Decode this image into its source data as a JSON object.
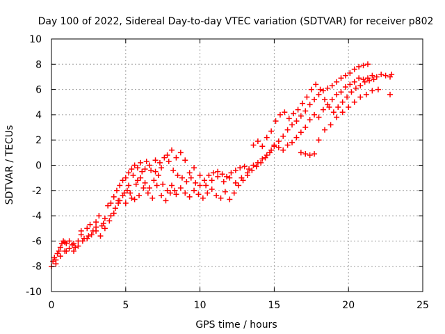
{
  "chart_data": {
    "type": "scatter",
    "title": "Day 100 of 2022, Sidereal Day-to-day VTEC variation (SDTVAR) for receiver p802",
    "xlabel": "GPS time / hours",
    "ylabel": "SDTVAR / TECUs",
    "xlim": [
      0,
      25
    ],
    "ylim": [
      -10,
      10
    ],
    "xticks": [
      0,
      5,
      10,
      15,
      20,
      25
    ],
    "yticks": [
      -10,
      -8,
      -6,
      -4,
      -2,
      0,
      2,
      4,
      6,
      8,
      10
    ],
    "grid": true,
    "marker": "plus",
    "color": "#ff0000",
    "series": [
      {
        "values": [
          [
            0.0,
            -8.0
          ],
          [
            0.1,
            -7.6
          ],
          [
            0.2,
            -7.3
          ],
          [
            0.3,
            -7.5
          ],
          [
            0.4,
            -7.0
          ],
          [
            0.5,
            -6.8
          ],
          [
            0.6,
            -6.5
          ],
          [
            0.7,
            -6.2
          ],
          [
            0.8,
            -6.0
          ],
          [
            0.9,
            -6.1
          ],
          [
            1.0,
            -6.2
          ],
          [
            1.2,
            -6.0
          ],
          [
            1.4,
            -6.3
          ],
          [
            1.6,
            -6.5
          ],
          [
            1.8,
            -6.0
          ],
          [
            2.0,
            -5.5
          ],
          [
            2.2,
            -5.8
          ],
          [
            2.4,
            -5.0
          ],
          [
            2.6,
            -4.7
          ],
          [
            2.8,
            -5.2
          ],
          [
            3.0,
            -4.5
          ],
          [
            3.2,
            -4.0
          ],
          [
            3.4,
            -4.8
          ],
          [
            3.6,
            -4.2
          ],
          [
            3.8,
            -3.2
          ],
          [
            4.0,
            -3.0
          ],
          [
            4.2,
            -2.5
          ],
          [
            4.4,
            -2.0
          ],
          [
            4.6,
            -1.6
          ],
          [
            4.8,
            -1.2
          ],
          [
            5.0,
            -1.0
          ],
          [
            5.2,
            -0.6
          ],
          [
            5.4,
            -0.3
          ],
          [
            5.6,
            0.0
          ],
          [
            5.8,
            -0.2
          ],
          [
            6.0,
            0.2
          ],
          [
            6.3,
            -0.3
          ],
          [
            6.6,
            0.0
          ],
          [
            7.0,
            -0.5
          ],
          [
            7.3,
            0.2
          ],
          [
            7.6,
            0.6
          ],
          [
            7.9,
            0.3
          ],
          [
            8.2,
            -0.4
          ],
          [
            8.5,
            -0.8
          ],
          [
            8.8,
            -1.0
          ],
          [
            9.1,
            -1.3
          ],
          [
            9.4,
            -1.0
          ],
          [
            9.7,
            -1.4
          ],
          [
            10.0,
            -1.6
          ],
          [
            10.3,
            -1.2
          ],
          [
            10.6,
            -0.8
          ],
          [
            10.9,
            -0.6
          ],
          [
            11.2,
            -0.5
          ],
          [
            11.5,
            -0.7
          ],
          [
            11.8,
            -0.9
          ],
          [
            12.1,
            -0.6
          ],
          [
            12.4,
            -0.4
          ],
          [
            12.7,
            -0.2
          ],
          [
            13.0,
            -0.1
          ],
          [
            13.3,
            -0.3
          ],
          [
            13.6,
            0.0
          ],
          [
            13.9,
            0.2
          ],
          [
            14.2,
            0.5
          ],
          [
            14.5,
            0.8
          ],
          [
            14.8,
            1.2
          ],
          [
            15.0,
            1.5
          ],
          [
            15.3,
            1.9
          ],
          [
            15.6,
            2.3
          ],
          [
            15.9,
            2.8
          ],
          [
            16.2,
            3.2
          ],
          [
            16.5,
            3.5
          ],
          [
            16.8,
            3.9
          ],
          [
            17.1,
            4.3
          ],
          [
            17.4,
            4.8
          ],
          [
            17.7,
            5.2
          ],
          [
            18.0,
            5.6
          ],
          [
            18.3,
            5.9
          ],
          [
            18.6,
            6.1
          ],
          [
            18.9,
            6.3
          ],
          [
            19.2,
            6.6
          ],
          [
            19.5,
            6.9
          ],
          [
            19.8,
            7.1
          ],
          [
            20.1,
            7.3
          ],
          [
            20.4,
            7.6
          ],
          [
            20.7,
            7.8
          ],
          [
            21.0,
            7.9
          ],
          [
            21.3,
            8.0
          ]
        ]
      },
      {
        "values": [
          [
            0.3,
            -7.8
          ],
          [
            0.6,
            -7.2
          ],
          [
            0.9,
            -6.8
          ],
          [
            1.2,
            -6.6
          ],
          [
            1.5,
            -6.8
          ],
          [
            1.8,
            -6.4
          ],
          [
            2.1,
            -6.0
          ],
          [
            2.4,
            -5.8
          ],
          [
            2.7,
            -5.5
          ],
          [
            3.0,
            -5.2
          ],
          [
            3.3,
            -5.6
          ],
          [
            3.6,
            -5.0
          ],
          [
            3.9,
            -4.4
          ],
          [
            4.2,
            -3.8
          ],
          [
            4.5,
            -3.0
          ],
          [
            4.8,
            -2.4
          ],
          [
            5.1,
            -2.0
          ],
          [
            5.4,
            -2.6
          ],
          [
            5.7,
            -1.5
          ],
          [
            6.0,
            -1.0
          ],
          [
            6.3,
            -1.4
          ],
          [
            6.6,
            -1.8
          ],
          [
            6.9,
            -1.2
          ],
          [
            7.2,
            -0.8
          ],
          [
            7.5,
            -1.5
          ],
          [
            7.8,
            -2.0
          ],
          [
            8.1,
            -1.6
          ],
          [
            8.4,
            -2.3
          ],
          [
            8.7,
            -1.8
          ],
          [
            9.0,
            -2.2
          ],
          [
            9.3,
            -2.5
          ],
          [
            9.6,
            -2.0
          ],
          [
            9.9,
            -2.3
          ],
          [
            10.2,
            -2.6
          ],
          [
            10.5,
            -2.2
          ],
          [
            10.8,
            -1.9
          ],
          [
            11.1,
            -2.4
          ],
          [
            11.4,
            -2.6
          ],
          [
            11.7,
            -2.1
          ],
          [
            12.0,
            -2.7
          ],
          [
            12.3,
            -2.2
          ],
          [
            12.6,
            -1.6
          ],
          [
            12.9,
            -1.2
          ],
          [
            13.2,
            -0.8
          ],
          [
            13.5,
            -0.4
          ],
          [
            13.8,
            -0.1
          ],
          [
            14.1,
            0.2
          ],
          [
            14.4,
            0.6
          ],
          [
            14.7,
            1.0
          ],
          [
            15.0,
            1.6
          ],
          [
            15.3,
            1.4
          ],
          [
            15.6,
            1.2
          ],
          [
            15.9,
            1.6
          ],
          [
            16.2,
            1.8
          ],
          [
            16.5,
            2.2
          ],
          [
            16.8,
            2.6
          ],
          [
            17.1,
            3.0
          ],
          [
            17.4,
            3.6
          ],
          [
            17.7,
            4.0
          ],
          [
            18.0,
            3.8
          ],
          [
            18.3,
            4.4
          ],
          [
            18.6,
            4.8
          ],
          [
            18.9,
            5.2
          ],
          [
            19.2,
            5.6
          ],
          [
            19.5,
            5.8
          ],
          [
            19.8,
            6.2
          ],
          [
            20.1,
            6.4
          ],
          [
            20.4,
            6.6
          ],
          [
            20.7,
            6.9
          ],
          [
            21.0,
            6.8
          ],
          [
            21.3,
            6.9
          ],
          [
            21.6,
            7.1
          ],
          [
            21.9,
            7.0
          ],
          [
            22.2,
            7.2
          ],
          [
            22.5,
            7.1
          ],
          [
            22.8,
            7.0
          ],
          [
            22.9,
            7.2
          ]
        ]
      },
      {
        "values": [
          [
            1.0,
            -6.8
          ],
          [
            1.5,
            -6.2
          ],
          [
            2.0,
            -5.2
          ],
          [
            2.5,
            -5.6
          ],
          [
            3.0,
            -4.9
          ],
          [
            3.5,
            -4.6
          ],
          [
            4.0,
            -4.0
          ],
          [
            4.3,
            -3.4
          ],
          [
            4.6,
            -2.8
          ],
          [
            4.9,
            -2.2
          ],
          [
            5.2,
            -1.6
          ],
          [
            5.5,
            -0.8
          ],
          [
            5.8,
            -1.2
          ],
          [
            6.1,
            -0.5
          ],
          [
            6.4,
            0.3
          ],
          [
            6.7,
            -0.4
          ],
          [
            7.0,
            0.4
          ],
          [
            7.4,
            -0.2
          ],
          [
            7.8,
            0.8
          ],
          [
            8.1,
            1.2
          ],
          [
            8.4,
            0.6
          ],
          [
            8.7,
            1.0
          ],
          [
            9.0,
            0.4
          ],
          [
            9.3,
            -0.6
          ],
          [
            9.6,
            -0.2
          ],
          [
            10.0,
            -0.8
          ],
          [
            10.4,
            -1.6
          ],
          [
            10.8,
            -1.2
          ],
          [
            11.2,
            -0.9
          ],
          [
            11.6,
            -1.3
          ],
          [
            12.0,
            -1.0
          ],
          [
            12.4,
            -1.4
          ],
          [
            12.8,
            -1.0
          ],
          [
            13.2,
            -0.6
          ],
          [
            13.6,
            1.6
          ],
          [
            13.9,
            1.9
          ],
          [
            14.2,
            1.5
          ],
          [
            14.5,
            2.2
          ],
          [
            14.8,
            2.7
          ],
          [
            15.1,
            3.5
          ],
          [
            15.4,
            4.0
          ],
          [
            15.7,
            4.2
          ],
          [
            16.0,
            3.7
          ],
          [
            16.3,
            4.1
          ],
          [
            16.6,
            4.4
          ],
          [
            16.9,
            4.9
          ],
          [
            17.2,
            5.4
          ],
          [
            17.5,
            6.0
          ],
          [
            17.8,
            6.4
          ],
          [
            18.1,
            6.0
          ],
          [
            18.4,
            5.2
          ],
          [
            18.7,
            4.6
          ],
          [
            19.0,
            4.2
          ],
          [
            19.3,
            4.6
          ],
          [
            19.6,
            5.0
          ],
          [
            19.9,
            5.4
          ],
          [
            20.2,
            5.8
          ],
          [
            20.5,
            6.1
          ],
          [
            20.8,
            6.3
          ],
          [
            21.1,
            6.6
          ],
          [
            21.4,
            6.7
          ],
          [
            21.7,
            6.8
          ]
        ]
      },
      {
        "values": [
          [
            4.5,
            -2.8
          ],
          [
            5.0,
            -3.0
          ],
          [
            5.3,
            -2.2
          ],
          [
            5.6,
            -2.7
          ],
          [
            5.9,
            -2.4
          ],
          [
            6.2,
            -1.8
          ],
          [
            6.5,
            -2.2
          ],
          [
            6.8,
            -2.6
          ],
          [
            7.1,
            -1.6
          ],
          [
            7.4,
            -2.4
          ],
          [
            7.7,
            -2.8
          ],
          [
            8.0,
            -2.2
          ],
          [
            8.3,
            -2.0
          ],
          [
            16.8,
            1.0
          ],
          [
            17.1,
            0.9
          ],
          [
            17.4,
            0.8
          ],
          [
            17.7,
            0.9
          ],
          [
            18.0,
            2.0
          ],
          [
            18.4,
            2.8
          ],
          [
            18.8,
            3.2
          ],
          [
            19.2,
            3.8
          ],
          [
            19.6,
            4.2
          ],
          [
            20.0,
            4.6
          ],
          [
            20.4,
            5.0
          ],
          [
            20.8,
            5.4
          ],
          [
            21.2,
            5.6
          ],
          [
            21.6,
            5.9
          ],
          [
            22.0,
            6.0
          ],
          [
            22.8,
            5.6
          ]
        ]
      }
    ]
  }
}
